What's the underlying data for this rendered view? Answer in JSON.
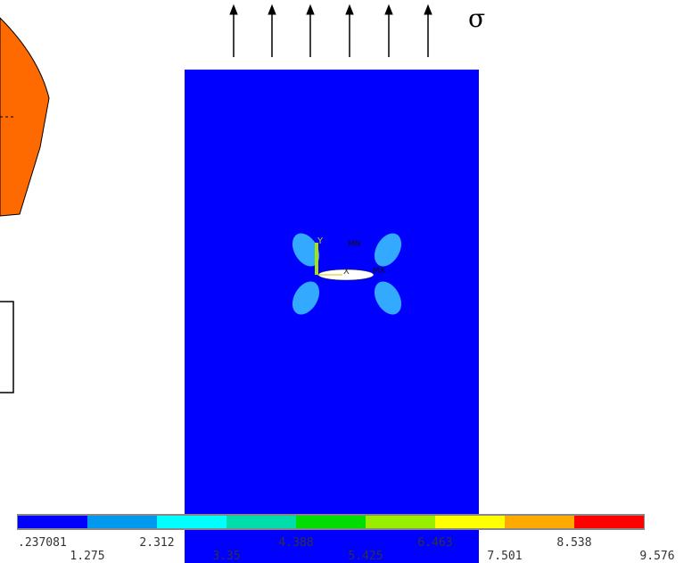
{
  "annotations": {
    "stress": "σ",
    "axis_y": "Y",
    "min_marker": "MN",
    "axis_x": "X",
    "max_marker": "MX"
  },
  "legend": {
    "colors": [
      "#0000ff",
      "#0099ee",
      "#00ffff",
      "#00ddaa",
      "#00dd00",
      "#99ee00",
      "#ffff00",
      "#ffaa00",
      "#ff0000"
    ],
    "labels": [
      ".237081",
      "1.275",
      "2.312",
      "3.35",
      "4.388",
      "5.425",
      "6.463",
      "7.501",
      "8.538",
      "9.576"
    ]
  }
}
